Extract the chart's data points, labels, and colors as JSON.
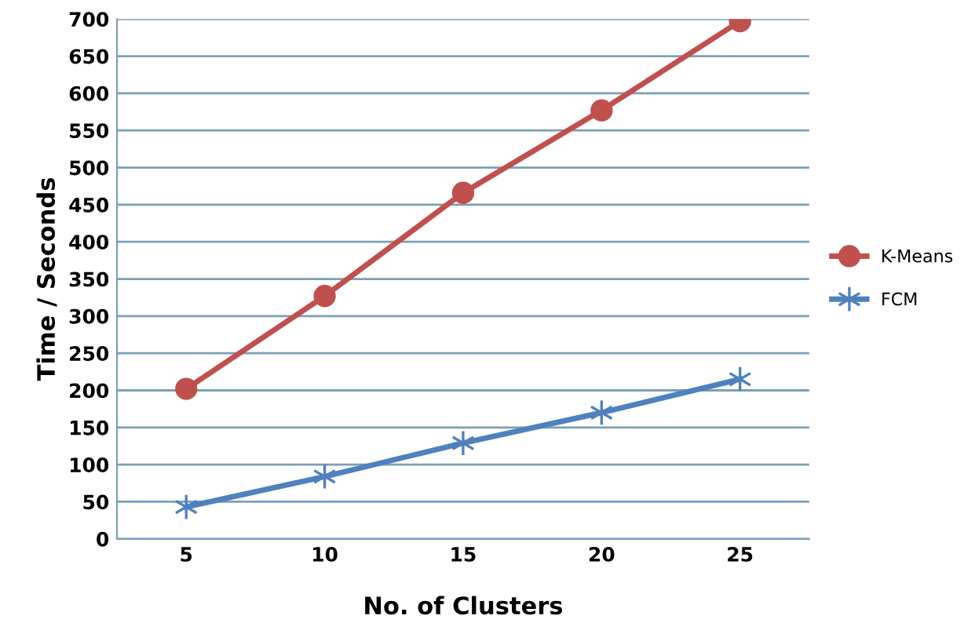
{
  "chart_data": {
    "type": "line",
    "xlabel": "No. of Clusters",
    "ylabel": "Time / Seconds",
    "categories": [
      "5",
      "10",
      "15",
      "20",
      "25"
    ],
    "series": [
      {
        "name": "K-Means",
        "color": "#c0504d",
        "marker": "circle",
        "values": [
          202,
          327,
          466,
          577,
          697
        ]
      },
      {
        "name": "FCM",
        "color": "#4f81bd",
        "marker": "cross",
        "values": [
          43,
          84,
          129,
          170,
          215
        ]
      }
    ],
    "ylim": [
      0,
      700
    ],
    "yticks": [
      0,
      50,
      100,
      150,
      200,
      250,
      300,
      350,
      400,
      450,
      500,
      550,
      600,
      650,
      700
    ],
    "grid": "y",
    "legend": "right",
    "line_style": "solid"
  }
}
